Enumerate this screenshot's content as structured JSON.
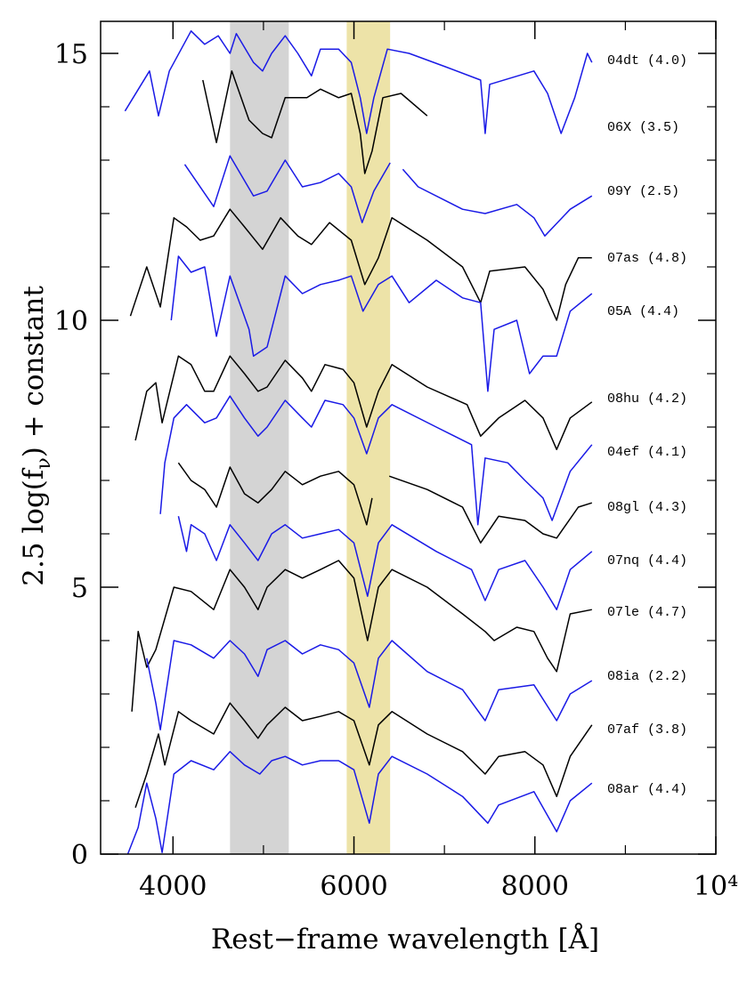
{
  "chart_data": {
    "type": "line",
    "xlabel": "Rest−frame wavelength [Å]",
    "ylabel_parts": [
      "2.5 log(f",
      "ν",
      ") + constant"
    ],
    "xlim": [
      3200,
      10000
    ],
    "ylim": [
      0,
      15.6
    ],
    "xticks": [
      4000,
      6000,
      8000,
      {
        "value": 10000,
        "label": "10⁴"
      }
    ],
    "xticks_minor": [
      5000,
      7000,
      9000
    ],
    "yticks": [
      0,
      5,
      10,
      15
    ],
    "yticks_minor": [
      1,
      2,
      3,
      4,
      6,
      7,
      8,
      9,
      11,
      12,
      13,
      14
    ],
    "shaded_regions": [
      {
        "xlim": [
          4630,
          5280
        ],
        "color": "#d4d4d4"
      },
      {
        "xlim": [
          5920,
          6400
        ],
        "color": "#ede3a8"
      }
    ],
    "series": [
      {
        "name": "04dt (4.0)",
        "color": "#1a1ae6",
        "x": [
          3470,
          3740,
          3840,
          3960,
          4200,
          4350,
          4500,
          4630,
          4700,
          4890,
          4990,
          5090,
          5240,
          5380,
          5530,
          5630,
          5830,
          5970,
          6070,
          6140,
          6220,
          6370,
          6610,
          7010,
          7400,
          7450,
          7500,
          7990,
          8140,
          8290,
          8440,
          8580,
          8630
        ],
        "values": [
          13.92,
          14.67,
          13.83,
          14.67,
          15.42,
          15.17,
          15.33,
          15.0,
          15.37,
          14.83,
          14.67,
          15.0,
          15.33,
          15.0,
          14.58,
          15.08,
          15.08,
          14.83,
          14.17,
          13.5,
          14.17,
          15.08,
          15.0,
          14.75,
          14.5,
          13.5,
          14.42,
          14.67,
          14.25,
          13.5,
          14.17,
          15.0,
          14.83
        ]
      },
      {
        "name": "06X (3.5)",
        "color": "#000000",
        "x": [
          4330,
          4480,
          4650,
          4840,
          4990,
          5090,
          5240,
          5480,
          5630,
          5830,
          5970,
          6070,
          6120,
          6200,
          6320,
          6520,
          6810
        ],
        "values": [
          14.5,
          13.33,
          14.67,
          13.75,
          13.5,
          13.42,
          14.17,
          14.17,
          14.33,
          14.17,
          14.25,
          13.5,
          12.75,
          13.17,
          14.17,
          14.25,
          13.83
        ]
      },
      {
        "name": "09Y (2.5)",
        "color": "#1a1ae6",
        "x": [
          4130,
          4450,
          4630,
          4890,
          5040,
          5240,
          5430,
          5630,
          5830,
          5970,
          6090,
          6220,
          6400,
          6470,
          6540,
          6710,
          7200,
          7450,
          7800,
          7990,
          8110,
          8390,
          8630
        ],
        "values": [
          12.92,
          12.13,
          13.08,
          12.33,
          12.42,
          13.0,
          12.5,
          12.58,
          12.75,
          12.5,
          11.83,
          12.42,
          12.95,
          null,
          12.83,
          12.5,
          12.08,
          12.0,
          12.17,
          11.92,
          11.58,
          12.08,
          12.33
        ]
      },
      {
        "name": "07as (4.8)",
        "color": "#000000",
        "x": [
          3530,
          3710,
          3860,
          4010,
          4150,
          4300,
          4450,
          4630,
          4790,
          4990,
          5190,
          5380,
          5530,
          5730,
          5970,
          6120,
          6270,
          6420,
          6810,
          7200,
          7400,
          7500,
          7890,
          8090,
          8240,
          8340,
          8480,
          8630
        ],
        "values": [
          10.08,
          11.0,
          10.25,
          11.92,
          11.75,
          11.5,
          11.58,
          12.08,
          11.75,
          11.33,
          11.92,
          11.58,
          11.42,
          11.83,
          11.5,
          10.67,
          11.17,
          11.92,
          11.5,
          11.0,
          10.33,
          10.92,
          11.0,
          10.58,
          10.0,
          10.67,
          11.17,
          11.17
        ]
      },
      {
        "name": "05A (4.4)",
        "color": "#1a1ae6",
        "x": [
          3980,
          4060,
          4200,
          4350,
          4480,
          4630,
          4840,
          4890,
          5040,
          5240,
          5430,
          5630,
          5830,
          5970,
          6100,
          6270,
          6420,
          6610,
          6910,
          7200,
          7400,
          7480,
          7550,
          7800,
          7940,
          8090,
          8240,
          8390,
          8630
        ],
        "values": [
          10.0,
          11.2,
          10.9,
          11.0,
          9.7,
          10.83,
          9.83,
          9.33,
          9.5,
          10.83,
          10.5,
          10.67,
          10.75,
          10.83,
          10.17,
          10.67,
          10.83,
          10.33,
          10.75,
          10.42,
          10.33,
          8.67,
          9.83,
          10.0,
          9.0,
          9.33,
          9.33,
          10.17,
          10.5
        ]
      },
      {
        "name": "08hu (4.2)",
        "color": "#000000",
        "x": [
          3585,
          3710,
          3810,
          3880,
          4060,
          4200,
          4350,
          4450,
          4630,
          4790,
          4940,
          5040,
          5240,
          5430,
          5530,
          5680,
          5880,
          6000,
          6140,
          6270,
          6420,
          6810,
          7250,
          7400,
          7600,
          7890,
          8090,
          8240,
          8390,
          8630
        ],
        "values": [
          7.75,
          8.67,
          8.83,
          8.08,
          9.33,
          9.17,
          8.67,
          8.67,
          9.33,
          9.0,
          8.67,
          8.75,
          9.25,
          8.92,
          8.67,
          9.17,
          9.08,
          8.83,
          8.0,
          8.67,
          9.17,
          8.75,
          8.42,
          7.83,
          8.17,
          8.5,
          8.17,
          7.58,
          8.17,
          8.47
        ]
      },
      {
        "name": "04ef (4.1)",
        "color": "#1a1ae6",
        "x": [
          3860,
          3910,
          4010,
          4150,
          4350,
          4480,
          4630,
          4790,
          4940,
          5040,
          5240,
          5430,
          5530,
          5680,
          5880,
          6000,
          6140,
          6270,
          6420,
          6910,
          7300,
          7370,
          7450,
          7700,
          7890,
          8090,
          8190,
          8390,
          8630
        ],
        "values": [
          6.37,
          7.33,
          8.17,
          8.42,
          8.08,
          8.17,
          8.58,
          8.17,
          7.83,
          8.0,
          8.5,
          8.17,
          8.0,
          8.5,
          8.42,
          8.17,
          7.5,
          8.17,
          8.42,
          8.0,
          7.67,
          6.17,
          7.42,
          7.33,
          7.0,
          6.67,
          6.25,
          7.17,
          7.67
        ]
      },
      {
        "name": "08gl (4.3)",
        "color": "#000000",
        "x": [
          4060,
          4200,
          4350,
          4480,
          4630,
          4790,
          4940,
          5090,
          5240,
          5430,
          5630,
          5830,
          6000,
          6140,
          6200,
          6300,
          6390,
          6810,
          7200,
          7400,
          7600,
          7890,
          8090,
          8240,
          8480,
          8630
        ],
        "values": [
          7.33,
          7.0,
          6.83,
          6.5,
          7.25,
          6.75,
          6.58,
          6.83,
          7.17,
          6.92,
          7.08,
          7.17,
          6.92,
          6.17,
          6.67,
          null,
          7.08,
          6.83,
          6.5,
          5.83,
          6.33,
          6.25,
          6.0,
          5.92,
          6.5,
          6.58
        ]
      },
      {
        "name": "07nq (4.4)",
        "color": "#1a1ae6",
        "x": [
          4060,
          4150,
          4200,
          4350,
          4480,
          4630,
          4790,
          4940,
          5090,
          5240,
          5430,
          5630,
          5830,
          6000,
          6150,
          6270,
          6420,
          6910,
          7300,
          7450,
          7600,
          7890,
          8090,
          8240,
          8390,
          8630
        ],
        "values": [
          6.33,
          5.67,
          6.17,
          6.0,
          5.5,
          6.17,
          5.83,
          5.5,
          6.0,
          6.17,
          5.92,
          6.0,
          6.08,
          5.83,
          4.83,
          5.83,
          6.17,
          5.67,
          5.33,
          4.75,
          5.33,
          5.5,
          5.0,
          4.58,
          5.33,
          5.67
        ]
      },
      {
        "name": "07le (4.7)",
        "color": "#000000",
        "x": [
          3545,
          3615,
          3710,
          3810,
          4010,
          4200,
          4450,
          4630,
          4790,
          4940,
          5040,
          5240,
          5430,
          5630,
          5830,
          6000,
          6150,
          6270,
          6420,
          6810,
          7200,
          7450,
          7550,
          7800,
          7990,
          8140,
          8240,
          8390,
          8630
        ],
        "values": [
          2.67,
          4.17,
          3.5,
          3.83,
          5.0,
          4.92,
          4.58,
          5.33,
          5.0,
          4.58,
          5.0,
          5.33,
          5.17,
          5.33,
          5.5,
          5.17,
          4.0,
          5.0,
          5.33,
          5.0,
          4.5,
          4.17,
          4.0,
          4.25,
          4.17,
          3.67,
          3.42,
          4.5,
          4.58
        ]
      },
      {
        "name": "08ia (2.2)",
        "color": "#1a1ae6",
        "x": [
          3710,
          3810,
          3860,
          4010,
          4200,
          4450,
          4630,
          4790,
          4940,
          5040,
          5240,
          5430,
          5630,
          5830,
          6000,
          6170,
          6270,
          6420,
          6810,
          7200,
          7450,
          7600,
          7990,
          8240,
          8390,
          8630
        ],
        "values": [
          3.67,
          2.83,
          2.33,
          4.0,
          3.92,
          3.67,
          4.0,
          3.75,
          3.33,
          3.83,
          4.0,
          3.75,
          3.92,
          3.83,
          3.58,
          2.75,
          3.67,
          4.0,
          3.42,
          3.08,
          2.5,
          3.08,
          3.17,
          2.5,
          3.0,
          3.25
        ]
      },
      {
        "name": "07af (3.8)",
        "color": "#000000",
        "x": [
          3585,
          3710,
          3840,
          3910,
          4060,
          4200,
          4450,
          4630,
          4790,
          4940,
          5040,
          5240,
          5430,
          5630,
          5830,
          6000,
          6170,
          6270,
          6420,
          6810,
          7200,
          7450,
          7600,
          7890,
          8090,
          8240,
          8390,
          8630
        ],
        "values": [
          0.87,
          1.5,
          2.25,
          1.67,
          2.67,
          2.5,
          2.25,
          2.83,
          2.5,
          2.17,
          2.42,
          2.75,
          2.5,
          2.58,
          2.67,
          2.5,
          1.67,
          2.42,
          2.67,
          2.25,
          1.92,
          1.5,
          1.83,
          1.92,
          1.67,
          1.08,
          1.83,
          2.42
        ]
      },
      {
        "name": "08ar (4.4)",
        "color": "#1a1ae6",
        "x": [
          3500,
          3615,
          3710,
          3810,
          3880,
          4010,
          4200,
          4450,
          4630,
          4790,
          4960,
          5090,
          5240,
          5430,
          5630,
          5830,
          6000,
          6170,
          6270,
          6420,
          6810,
          7200,
          7480,
          7600,
          7990,
          8240,
          8390,
          8630
        ],
        "values": [
          0.0,
          0.5,
          1.33,
          0.67,
          0.03,
          1.5,
          1.75,
          1.58,
          1.92,
          1.67,
          1.5,
          1.75,
          1.83,
          1.67,
          1.75,
          1.75,
          1.58,
          0.58,
          1.5,
          1.83,
          1.5,
          1.08,
          0.58,
          0.92,
          1.17,
          0.42,
          1.0,
          1.33
        ]
      }
    ]
  }
}
